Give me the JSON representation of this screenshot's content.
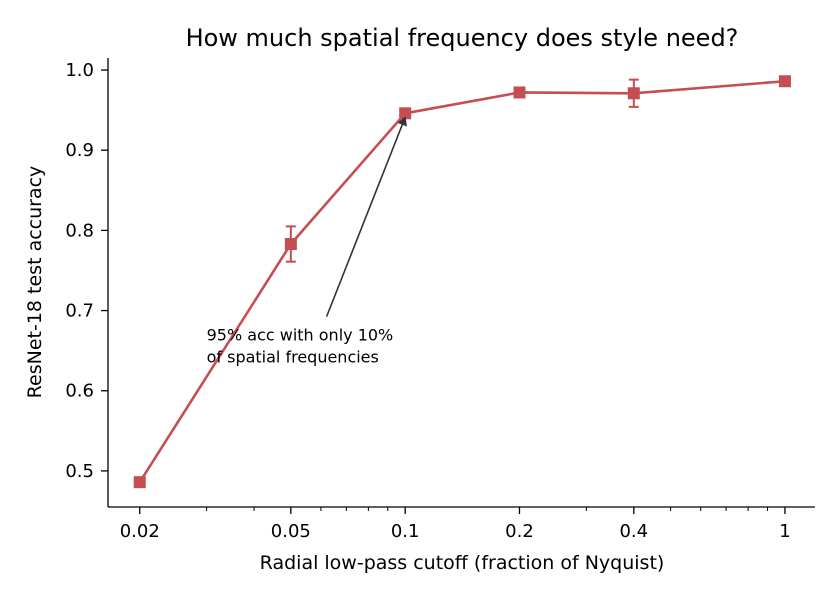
{
  "chart_data": {
    "type": "line",
    "title": "How much spatial frequency does style need?",
    "xlabel": "Radial low-pass cutoff (fraction of Nyquist)",
    "ylabel": "ResNet-18 test accuracy",
    "x_scale": "log",
    "xlim": [
      0.0165,
      1.2
    ],
    "ylim": [
      0.455,
      1.015
    ],
    "x_ticks": [
      0.02,
      0.05,
      0.1,
      0.2,
      0.4,
      1
    ],
    "x_tick_labels": [
      "0.02",
      "0.05",
      "0.1",
      "0.2",
      "0.4",
      "1"
    ],
    "y_ticks": [
      0.5,
      0.6,
      0.7,
      0.8,
      0.9,
      1.0
    ],
    "y_tick_labels": [
      "0.5",
      "0.6",
      "0.7",
      "0.8",
      "0.9",
      "1.0"
    ],
    "grid": false,
    "series": [
      {
        "x": [
          0.02,
          0.05,
          0.1,
          0.2,
          0.4,
          1
        ],
        "y": [
          0.486,
          0.783,
          0.946,
          0.972,
          0.971,
          0.986
        ],
        "yerr": [
          0,
          0.022,
          0,
          0,
          0.017,
          0
        ],
        "color": "#c44e52",
        "marker": "square"
      }
    ],
    "annotation": {
      "lines": [
        "95% acc with only 10%",
        "of spatial frequencies"
      ],
      "point": [
        0.1,
        0.946
      ],
      "text_at": [
        0.03,
        0.655
      ]
    }
  }
}
